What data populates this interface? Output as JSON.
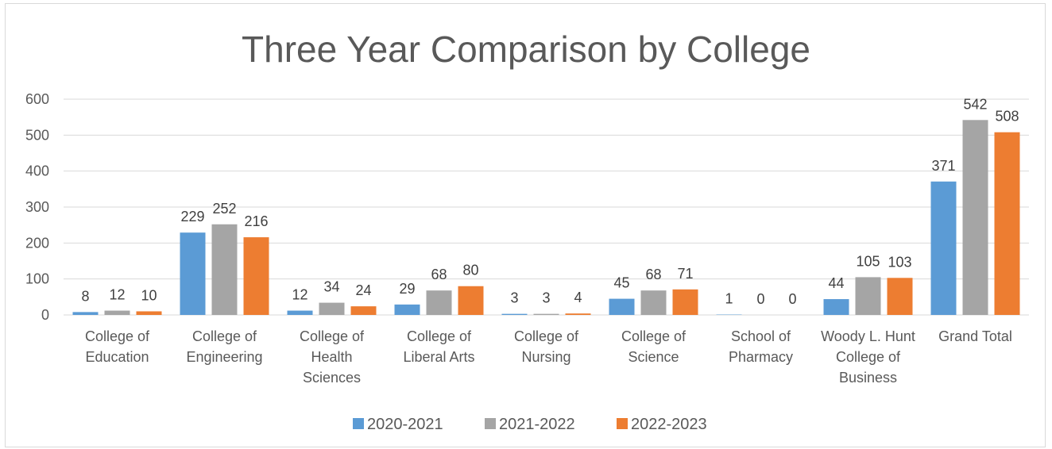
{
  "chart_data": {
    "type": "bar",
    "title": "Three Year Comparison by College",
    "xlabel": "",
    "ylabel": "",
    "ylim": [
      0,
      600
    ],
    "yticks": [
      0,
      100,
      200,
      300,
      400,
      500,
      600
    ],
    "grid": true,
    "legend_position": "bottom",
    "categories": [
      [
        "College of",
        "Education"
      ],
      [
        "College of",
        "Engineering"
      ],
      [
        "College of",
        "Health",
        "Sciences"
      ],
      [
        "College of",
        "Liberal Arts"
      ],
      [
        "College of",
        "Nursing"
      ],
      [
        "College of",
        "Science"
      ],
      [
        "School of",
        "Pharmacy"
      ],
      [
        "Woody L. Hunt",
        "College of",
        "Business"
      ],
      [
        "Grand Total"
      ]
    ],
    "series": [
      {
        "name": "2020-2021",
        "color": "#5b9bd5",
        "values": [
          8,
          229,
          12,
          29,
          3,
          45,
          1,
          44,
          371
        ]
      },
      {
        "name": "2021-2022",
        "color": "#a5a5a5",
        "values": [
          12,
          252,
          34,
          68,
          3,
          68,
          0,
          105,
          542
        ]
      },
      {
        "name": "2022-2023",
        "color": "#ed7d31",
        "values": [
          10,
          216,
          24,
          80,
          4,
          71,
          0,
          103,
          508
        ]
      }
    ]
  }
}
